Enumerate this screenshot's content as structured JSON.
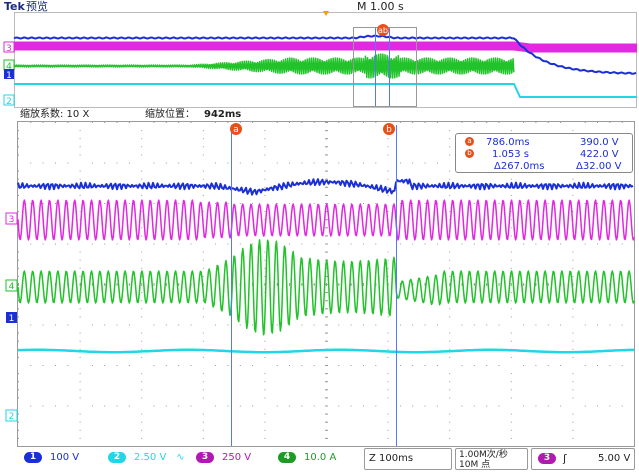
{
  "header": {
    "brand": "Tek",
    "mode": "预览",
    "timebase": "M 1.00 s"
  },
  "zoom": {
    "factor_label": "缩放系数: 10 X",
    "position_label": "缩放位置：",
    "position_value": "942ms"
  },
  "cursors": {
    "a": {
      "marker": "a",
      "time": "786.0ms",
      "value": "390.0 V"
    },
    "b": {
      "marker": "b",
      "time": "1.053 s",
      "value": "422.0 V"
    },
    "delta_time": "Δ267.0ms",
    "delta_value": "Δ32.00 V",
    "overview_marker": "ab"
  },
  "channel_markers": {
    "ch1": "1",
    "ch2": "2",
    "ch3": "3",
    "ch4": "4"
  },
  "statusbar": {
    "ch1": {
      "num": "1",
      "scale": "100 V"
    },
    "ch2": {
      "num": "2",
      "scale": "2.50 V",
      "coupling": "∿"
    },
    "ch3": {
      "num": "3",
      "scale": "250 V"
    },
    "ch4": {
      "num": "4",
      "scale": "10.0 A"
    },
    "zoom_time": "Z 100ms",
    "sample_rate": "1.00M次/秒",
    "record_length": "10M 点",
    "trigger_source": "3",
    "trigger_slope": "ʃ",
    "trigger_level": "5.00 V"
  },
  "colors": {
    "ch1": "#1a2fd6",
    "ch2": "#22d6e6",
    "ch3": "#e029e0",
    "ch4": "#22c22a",
    "cursor": "#5577ff",
    "grid": "#9a9a9a"
  }
}
